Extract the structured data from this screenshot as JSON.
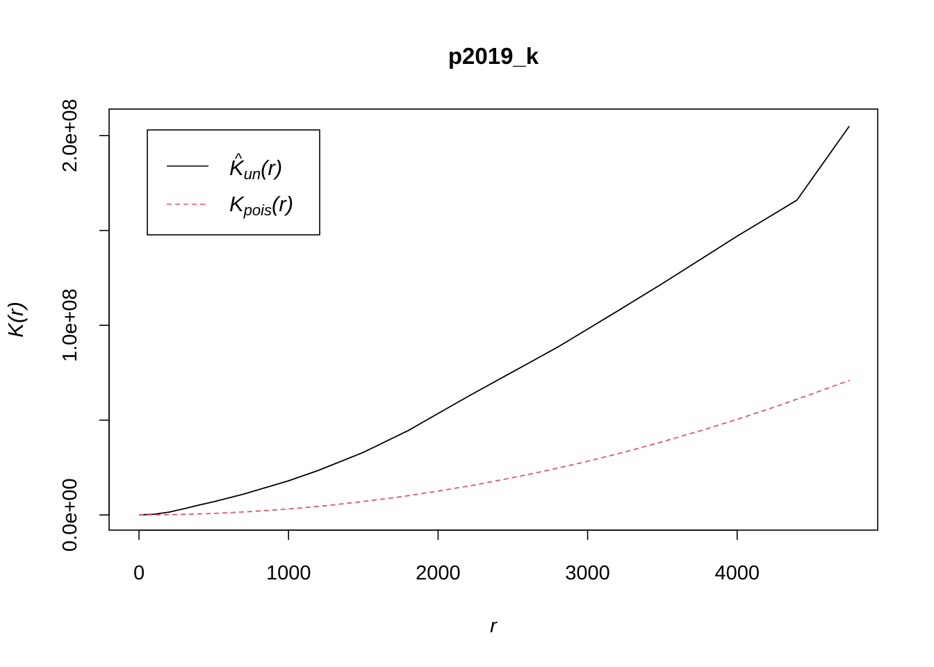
{
  "chart_data": {
    "type": "line",
    "title": "p2019_k",
    "xlabel": "r",
    "ylabel_main": "K",
    "ylabel_arg": "(r)",
    "xlim": [
      -200,
      4940
    ],
    "ylim": [
      -8000000,
      214000000
    ],
    "x_ticks": [
      0,
      1000,
      2000,
      3000,
      4000
    ],
    "x_tick_labels": [
      "0",
      "1000",
      "2000",
      "3000",
      "4000"
    ],
    "y_ticks": [
      0,
      50000000,
      100000000,
      150000000,
      200000000
    ],
    "y_tick_labels": [
      "0.0e+00",
      "",
      "1.0e+08",
      "",
      "2.0e+08"
    ],
    "legend": {
      "position": "top-left",
      "entries": [
        {
          "main": "K",
          "hat": "^",
          "sub": "un",
          "arg": "(r)",
          "color": "#000000",
          "dash": "solid"
        },
        {
          "main": "K",
          "hat": "",
          "sub": "pois",
          "arg": "(r)",
          "color": "#df536b",
          "dash": "dashed"
        }
      ]
    },
    "series": [
      {
        "color": "#000000",
        "dash": "solid",
        "x": [
          0,
          100,
          200,
          300,
          400,
          500,
          700,
          1000,
          1200,
          1500,
          1800,
          2000,
          2200,
          2500,
          2800,
          3000,
          3200,
          3500,
          3800,
          4000,
          4200,
          4400,
          4750
        ],
        "y": [
          0,
          400000,
          1500000,
          3300000,
          5200000,
          7000000,
          11000000,
          18000000,
          23500000,
          33000000,
          44500000,
          53500000,
          62500000,
          75500000,
          88500000,
          98000000,
          107500000,
          122000000,
          137000000,
          147000000,
          156500000,
          166000000,
          205000000
        ]
      },
      {
        "color": "#df536b",
        "dash": "dashed",
        "x": [
          0,
          250,
          500,
          750,
          1000,
          1250,
          1500,
          1750,
          2000,
          2250,
          2500,
          2750,
          3000,
          3250,
          3500,
          3750,
          4000,
          4250,
          4500,
          4750
        ],
        "y": [
          0,
          200000,
          800000,
          1800000,
          3150000,
          4900000,
          7100000,
          9600000,
          12600000,
          15900000,
          19700000,
          23800000,
          28300000,
          33200000,
          38600000,
          44300000,
          50400000,
          56900000,
          63800000,
          71000000
        ]
      }
    ]
  }
}
